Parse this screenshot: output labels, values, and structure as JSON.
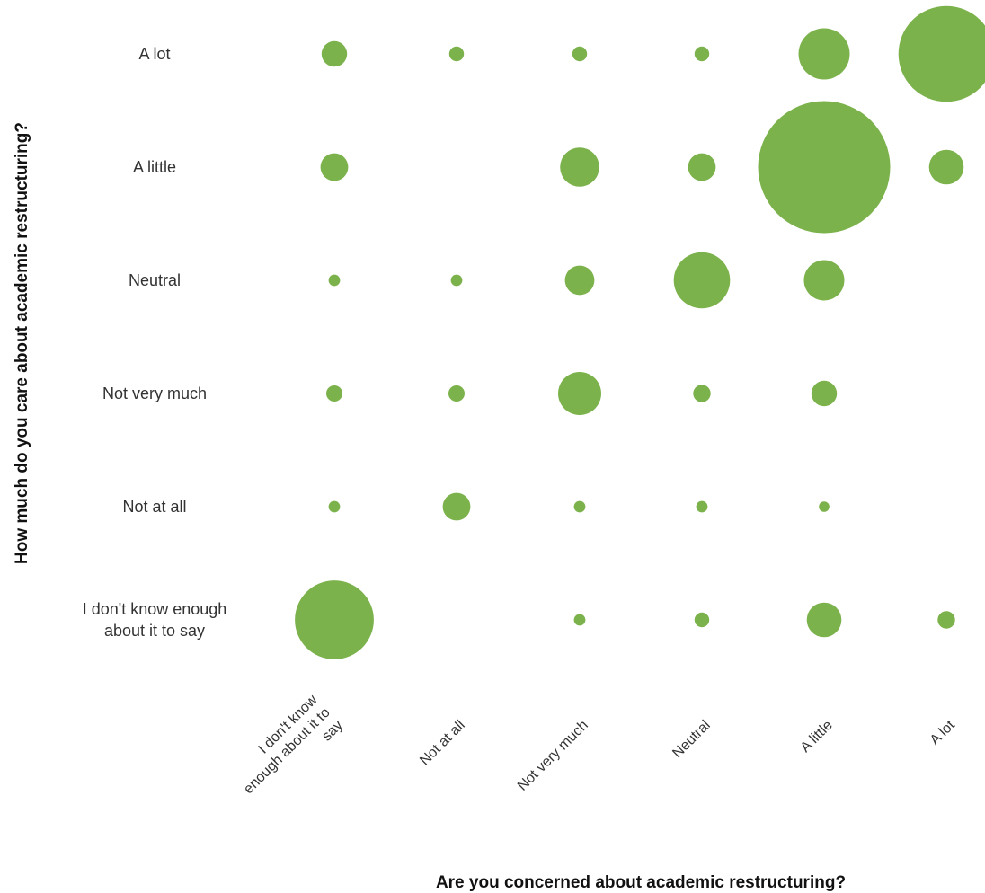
{
  "chart_data": {
    "type": "bubble",
    "xlabel": "Are you concerned about academic restructuring?",
    "ylabel": "How much do you care about academic restructuring?",
    "x_categories": [
      "I don't know enough about it to say",
      "Not at all",
      "Not very much",
      "Neutral",
      "A little",
      "A lot"
    ],
    "y_categories": [
      "A lot",
      "A little",
      "Neutral",
      "Not very much",
      "Not at all",
      "I don't know enough about it to say"
    ],
    "color": "#7cb24b",
    "points": [
      {
        "x": "I don't know enough about it to say",
        "y": "A lot",
        "size": 30
      },
      {
        "x": "Not at all",
        "y": "A lot",
        "size": 10
      },
      {
        "x": "Not very much",
        "y": "A lot",
        "size": 10
      },
      {
        "x": "Neutral",
        "y": "A lot",
        "size": 10
      },
      {
        "x": "A little",
        "y": "A lot",
        "size": 120
      },
      {
        "x": "A lot",
        "y": "A lot",
        "size": 420
      },
      {
        "x": "I don't know enough about it to say",
        "y": "A little",
        "size": 35
      },
      {
        "x": "Not very much",
        "y": "A little",
        "size": 70
      },
      {
        "x": "Neutral",
        "y": "A little",
        "size": 35
      },
      {
        "x": "A little",
        "y": "A little",
        "size": 800
      },
      {
        "x": "A lot",
        "y": "A little",
        "size": 55
      },
      {
        "x": "I don't know enough about it to say",
        "y": "Neutral",
        "size": 6
      },
      {
        "x": "Not at all",
        "y": "Neutral",
        "size": 6
      },
      {
        "x": "Not very much",
        "y": "Neutral",
        "size": 40
      },
      {
        "x": "Neutral",
        "y": "Neutral",
        "size": 145
      },
      {
        "x": "A little",
        "y": "Neutral",
        "size": 75
      },
      {
        "x": "I don't know enough about it to say",
        "y": "Not very much",
        "size": 12
      },
      {
        "x": "Not at all",
        "y": "Not very much",
        "size": 12
      },
      {
        "x": "Not very much",
        "y": "Not very much",
        "size": 85
      },
      {
        "x": "Neutral",
        "y": "Not very much",
        "size": 14
      },
      {
        "x": "A little",
        "y": "Not very much",
        "size": 30
      },
      {
        "x": "I don't know enough about it to say",
        "y": "Not at all",
        "size": 6
      },
      {
        "x": "Not at all",
        "y": "Not at all",
        "size": 35
      },
      {
        "x": "Not very much",
        "y": "Not at all",
        "size": 6
      },
      {
        "x": "Neutral",
        "y": "Not at all",
        "size": 6
      },
      {
        "x": "A little",
        "y": "Not at all",
        "size": 5
      },
      {
        "x": "I don't know enough about it to say",
        "y": "I don't know enough about it to say",
        "size": 285
      },
      {
        "x": "Not very much",
        "y": "I don't know enough about it to say",
        "size": 6
      },
      {
        "x": "Neutral",
        "y": "I don't know enough about it to say",
        "size": 10
      },
      {
        "x": "A little",
        "y": "I don't know enough about it to say",
        "size": 55
      },
      {
        "x": "A lot",
        "y": "I don't know enough about it to say",
        "size": 14
      }
    ]
  }
}
